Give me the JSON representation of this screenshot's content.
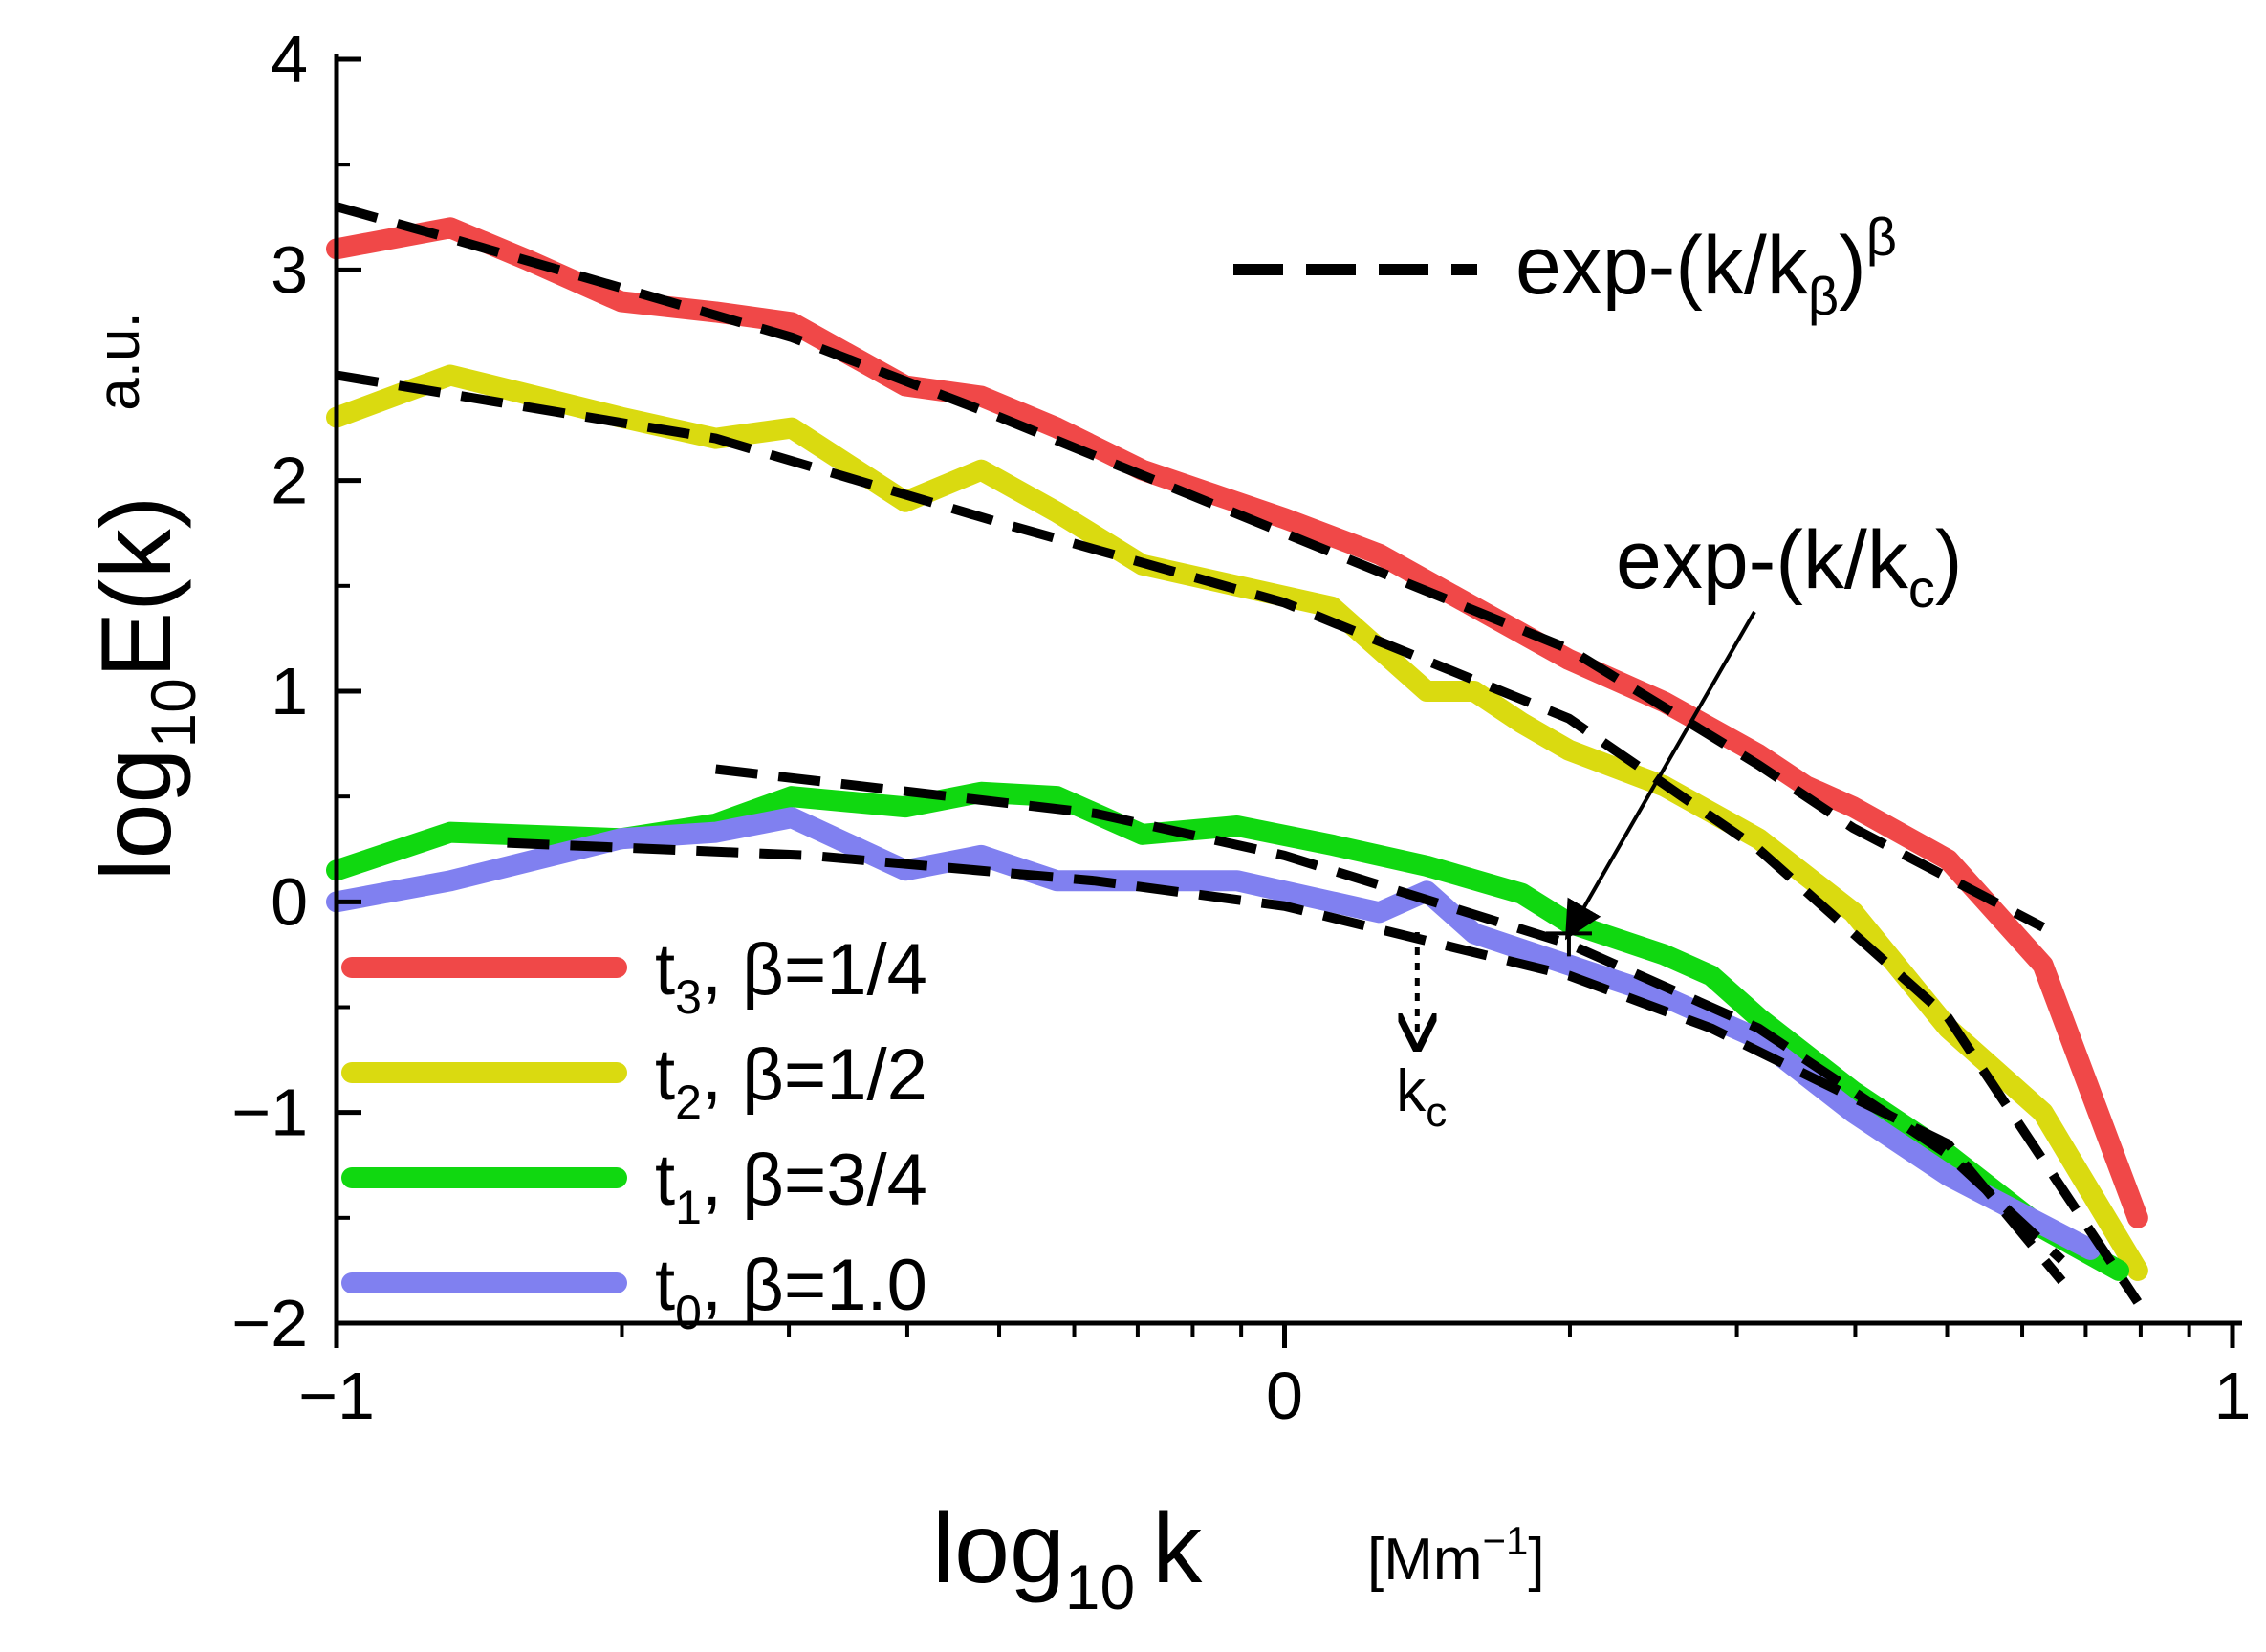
{
  "chart_data": {
    "type": "line",
    "title": "",
    "xlim": [
      -1,
      1
    ],
    "ylim": [
      -2,
      4
    ],
    "x_ticks": [
      {
        "value": -1,
        "label": "−1"
      },
      {
        "value": 0,
        "label": "0"
      },
      {
        "value": 1,
        "label": "1"
      }
    ],
    "y_ticks": [
      {
        "value": 4,
        "label": "4"
      },
      {
        "value": 3,
        "label": "3"
      },
      {
        "value": 2,
        "label": "2"
      },
      {
        "value": 1,
        "label": "1"
      },
      {
        "value": 0,
        "label": "0"
      },
      {
        "value": -1,
        "label": "−1"
      },
      {
        "value": -2,
        "label": "−2"
      }
    ],
    "xlabel": {
      "main": "log",
      "sub": "10",
      "var": "k",
      "units_open": "[Mm",
      "units_sup": "−1",
      "units_close": "]"
    },
    "ylabel": {
      "main": "log",
      "sub": "10",
      "rest": "E(k)",
      "units": "a.u."
    },
    "legend_position": "bottom-left",
    "series": [
      {
        "name": "t3",
        "label_t": "t",
        "label_sub": "3",
        "label_beta": ",  β=1/4",
        "color": "#f04848",
        "x": [
          -1.0,
          -0.88,
          -0.8,
          -0.7,
          -0.6,
          -0.52,
          -0.4,
          -0.32,
          -0.24,
          -0.15,
          0.0,
          0.1,
          0.2,
          0.3,
          0.4,
          0.5,
          0.55,
          0.6,
          0.7,
          0.8,
          0.9
        ],
        "y": [
          3.1,
          3.2,
          3.05,
          2.85,
          2.8,
          2.75,
          2.45,
          2.4,
          2.25,
          2.05,
          1.82,
          1.65,
          1.4,
          1.15,
          0.95,
          0.7,
          0.55,
          0.45,
          0.2,
          -0.3,
          -1.5
        ]
      },
      {
        "name": "t2",
        "label_t": "t",
        "label_sub": "2",
        "label_beta": ",  β=1/2",
        "color": "#dada10",
        "x": [
          -1.0,
          -0.88,
          -0.7,
          -0.6,
          -0.52,
          -0.4,
          -0.32,
          -0.24,
          -0.15,
          -0.05,
          0.05,
          0.1,
          0.15,
          0.2,
          0.25,
          0.3,
          0.4,
          0.5,
          0.6,
          0.7,
          0.8,
          0.9
        ],
        "y": [
          2.3,
          2.5,
          2.3,
          2.2,
          2.25,
          1.9,
          2.05,
          1.85,
          1.6,
          1.5,
          1.4,
          1.2,
          1.0,
          1.0,
          0.85,
          0.72,
          0.55,
          0.3,
          -0.05,
          -0.6,
          -1.0,
          -1.75
        ]
      },
      {
        "name": "t1",
        "label_t": "t",
        "label_sub": "1",
        "label_beta": ",  β=3/4",
        "color": "#10d810",
        "x": [
          -1.0,
          -0.88,
          -0.7,
          -0.6,
          -0.52,
          -0.4,
          -0.32,
          -0.24,
          -0.15,
          -0.05,
          0.05,
          0.15,
          0.25,
          0.3,
          0.4,
          0.45,
          0.5,
          0.6,
          0.7,
          0.8,
          0.88
        ],
        "y": [
          0.15,
          0.33,
          0.3,
          0.37,
          0.5,
          0.45,
          0.52,
          0.5,
          0.32,
          0.36,
          0.27,
          0.17,
          0.04,
          -0.1,
          -0.25,
          -0.35,
          -0.55,
          -0.9,
          -1.2,
          -1.55,
          -1.75
        ]
      },
      {
        "name": "t0",
        "label_t": "t",
        "label_sub": "0",
        "label_beta": ",  β=1.0",
        "color": "#8080f0",
        "x": [
          -1.0,
          -0.88,
          -0.7,
          -0.6,
          -0.52,
          -0.4,
          -0.32,
          -0.24,
          -0.15,
          -0.05,
          0.05,
          0.1,
          0.15,
          0.2,
          0.3,
          0.4,
          0.5,
          0.6,
          0.7,
          0.85
        ],
        "y": [
          0.0,
          0.1,
          0.3,
          0.33,
          0.4,
          0.15,
          0.22,
          0.1,
          0.1,
          0.1,
          0.0,
          -0.05,
          0.05,
          -0.15,
          -0.3,
          -0.45,
          -0.65,
          -1.0,
          -1.3,
          -1.65
        ]
      }
    ],
    "fits": [
      {
        "name": "fit-t3",
        "x": [
          -1.0,
          -0.88,
          -0.52,
          -0.3,
          0.0,
          0.3,
          0.5,
          0.6,
          0.8
        ],
        "y": [
          3.3,
          3.15,
          2.68,
          2.3,
          1.75,
          1.2,
          0.65,
          0.35,
          -0.12
        ]
      },
      {
        "name": "fit-t2",
        "x": [
          -1.0,
          -0.6,
          -0.3,
          0.0,
          0.3,
          0.5,
          0.7,
          0.9
        ],
        "y": [
          2.5,
          2.2,
          1.8,
          1.42,
          0.87,
          0.25,
          -0.55,
          -1.9
        ]
      },
      {
        "name": "fit-t1",
        "x": [
          -0.6,
          -0.2,
          0.0,
          0.3,
          0.5,
          0.7,
          0.82
        ],
        "y": [
          0.63,
          0.42,
          0.22,
          -0.2,
          -0.6,
          -1.2,
          -1.7
        ]
      },
      {
        "name": "fit-t0",
        "x": [
          -0.82,
          -0.5,
          -0.2,
          0.0,
          0.3,
          0.45,
          0.7,
          0.82
        ],
        "y": [
          0.28,
          0.22,
          0.1,
          -0.02,
          -0.35,
          -0.6,
          -1.15,
          -1.8
        ]
      }
    ],
    "legend_fit_label": {
      "main": "exp-(k/k",
      "sub": "β",
      "close": ")",
      "sup": "β"
    },
    "annotations": [
      {
        "name": "exp-kc-label",
        "main": "exp-(k/k",
        "sub": "c",
        "close": ")",
        "arrow_to": [
          0.3,
          -0.15
        ]
      },
      {
        "name": "kc-marker",
        "main": "k",
        "sub": "c",
        "x": 0.14
      }
    ]
  }
}
